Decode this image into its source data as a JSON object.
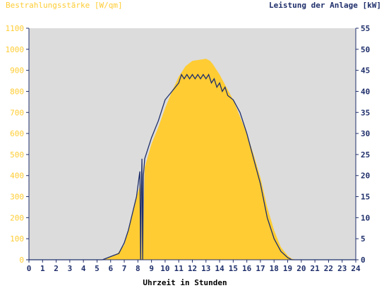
{
  "chart_data": {
    "type": "area",
    "ylabel_left": "Bestrahlungsstärke [W/qm]",
    "ylabel_right": "Leistung der Anlage [kW]",
    "xlabel": "Uhrzeit in Stunden",
    "xlim": [
      0,
      24
    ],
    "ylim_left": [
      0,
      1100
    ],
    "ylim_right": [
      0,
      55
    ],
    "x_ticks": [
      "0",
      "1",
      "2",
      "3",
      "4",
      "5",
      "6",
      "7",
      "8",
      "9",
      "10",
      "11",
      "12",
      "13",
      "14",
      "15",
      "16",
      "17",
      "18",
      "19",
      "20",
      "21",
      "22",
      "23",
      "24"
    ],
    "y_ticks_left": [
      "0",
      "100",
      "200",
      "300",
      "400",
      "500",
      "600",
      "700",
      "800",
      "900",
      "1000",
      "1100"
    ],
    "y_ticks_right": [
      "0",
      "5",
      "10",
      "15",
      "20",
      "25",
      "30",
      "35",
      "40",
      "45",
      "50",
      "55"
    ],
    "grid": false,
    "colors": {
      "irradiance": "#ffcc33",
      "power": "#1f2f6b",
      "plot_background": "#dcdcdc",
      "left_axis_text": "#ffcc33",
      "right_axis_text": "#1f2f6b"
    },
    "series": [
      {
        "name": "Bestrahlungsstärke [W/qm]",
        "axis": "left",
        "x": [
          0,
          5.3,
          5.7,
          6.0,
          6.5,
          7.0,
          7.3,
          7.6,
          7.9,
          8.2,
          8.25,
          8.3,
          8.35,
          8.5,
          9.0,
          9.5,
          10.0,
          10.5,
          11.0,
          11.5,
          12.0,
          12.5,
          13.0,
          13.3,
          13.5,
          14.0,
          14.5,
          15.0,
          15.5,
          16.0,
          16.5,
          17.0,
          17.5,
          18.0,
          18.5,
          19.0,
          19.3,
          19.6,
          24
        ],
        "y": [
          0,
          0,
          5,
          15,
          30,
          70,
          140,
          220,
          300,
          360,
          0,
          320,
          0,
          440,
          550,
          630,
          720,
          800,
          870,
          920,
          945,
          950,
          955,
          945,
          930,
          880,
          820,
          760,
          680,
          600,
          500,
          390,
          250,
          140,
          60,
          20,
          5,
          0,
          0
        ]
      },
      {
        "name": "Leistung der Anlage [kW]",
        "axis": "right",
        "x": [
          0,
          5.4,
          5.8,
          6.2,
          6.6,
          7.0,
          7.3,
          7.6,
          7.9,
          8.1,
          8.15,
          8.2,
          8.25,
          8.3,
          8.35,
          8.4,
          8.5,
          9.0,
          9.5,
          10.0,
          10.5,
          11.0,
          11.2,
          11.4,
          11.6,
          11.8,
          12.0,
          12.2,
          12.4,
          12.6,
          12.8,
          13.0,
          13.2,
          13.4,
          13.6,
          13.8,
          14.0,
          14.2,
          14.4,
          14.6,
          15.0,
          15.5,
          16.0,
          16.5,
          17.0,
          17.5,
          18.0,
          18.5,
          19.0,
          19.3,
          19.6,
          24
        ],
        "y": [
          0,
          0,
          0.5,
          1,
          1.5,
          4,
          7,
          11,
          15,
          20,
          21,
          0,
          17,
          24,
          0,
          20,
          24,
          29,
          33,
          38,
          40,
          42,
          44,
          43,
          44,
          43,
          44,
          43,
          44,
          43,
          44,
          43,
          44,
          42,
          43,
          41,
          42,
          40,
          41,
          39,
          38,
          35,
          30,
          24,
          18,
          10,
          5,
          2,
          0.5,
          0,
          0,
          0
        ]
      }
    ]
  }
}
